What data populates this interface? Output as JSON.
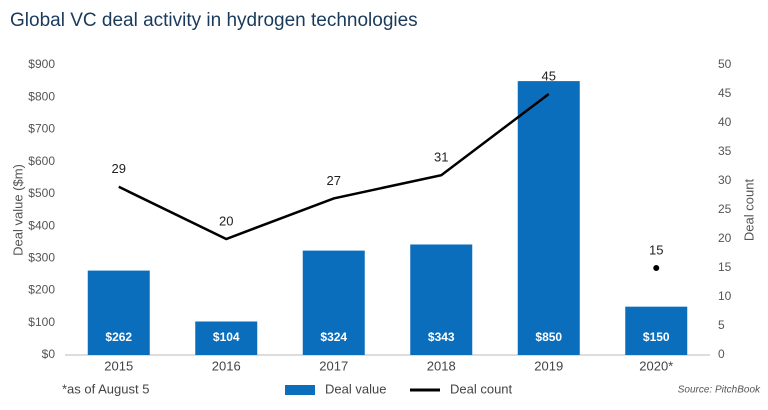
{
  "chart_data": {
    "type": "bar_line",
    "title": "Global VC deal activity in hydrogen technologies",
    "categories": [
      "2015",
      "2016",
      "2017",
      "2018",
      "2019",
      "2020*"
    ],
    "series": [
      {
        "name": "Deal value",
        "type": "bar",
        "color": "#0a6ebd",
        "axis": "y",
        "values": [
          262,
          104,
          324,
          343,
          850,
          150
        ],
        "value_labels": [
          "$262",
          "$104",
          "$324",
          "$343",
          "$850",
          "$150"
        ]
      },
      {
        "name": "Deal count",
        "type": "line",
        "color": "#000000",
        "axis": "y2",
        "values": [
          29,
          20,
          27,
          31,
          45,
          15
        ],
        "gap_before": 5
      }
    ],
    "ylabel": "Deal value ($m)",
    "y2label": "Deal count",
    "ylim": [
      0,
      900
    ],
    "yticks": [
      {
        "value": 0,
        "label": "$0"
      },
      {
        "value": 100,
        "label": "$100"
      },
      {
        "value": 200,
        "label": "$200"
      },
      {
        "value": 300,
        "label": "$300"
      },
      {
        "value": 400,
        "label": "$400"
      },
      {
        "value": 500,
        "label": "$500"
      },
      {
        "value": 600,
        "label": "$600"
      },
      {
        "value": 700,
        "label": "$700"
      },
      {
        "value": 800,
        "label": "$800"
      },
      {
        "value": 900,
        "label": "$900"
      }
    ],
    "y2lim": [
      0,
      50
    ],
    "y2ticks": [
      0,
      5,
      10,
      15,
      20,
      25,
      30,
      35,
      40,
      45,
      50
    ],
    "grid": false,
    "footnote": "*as of August 5",
    "source": "Source: PitchBook"
  }
}
